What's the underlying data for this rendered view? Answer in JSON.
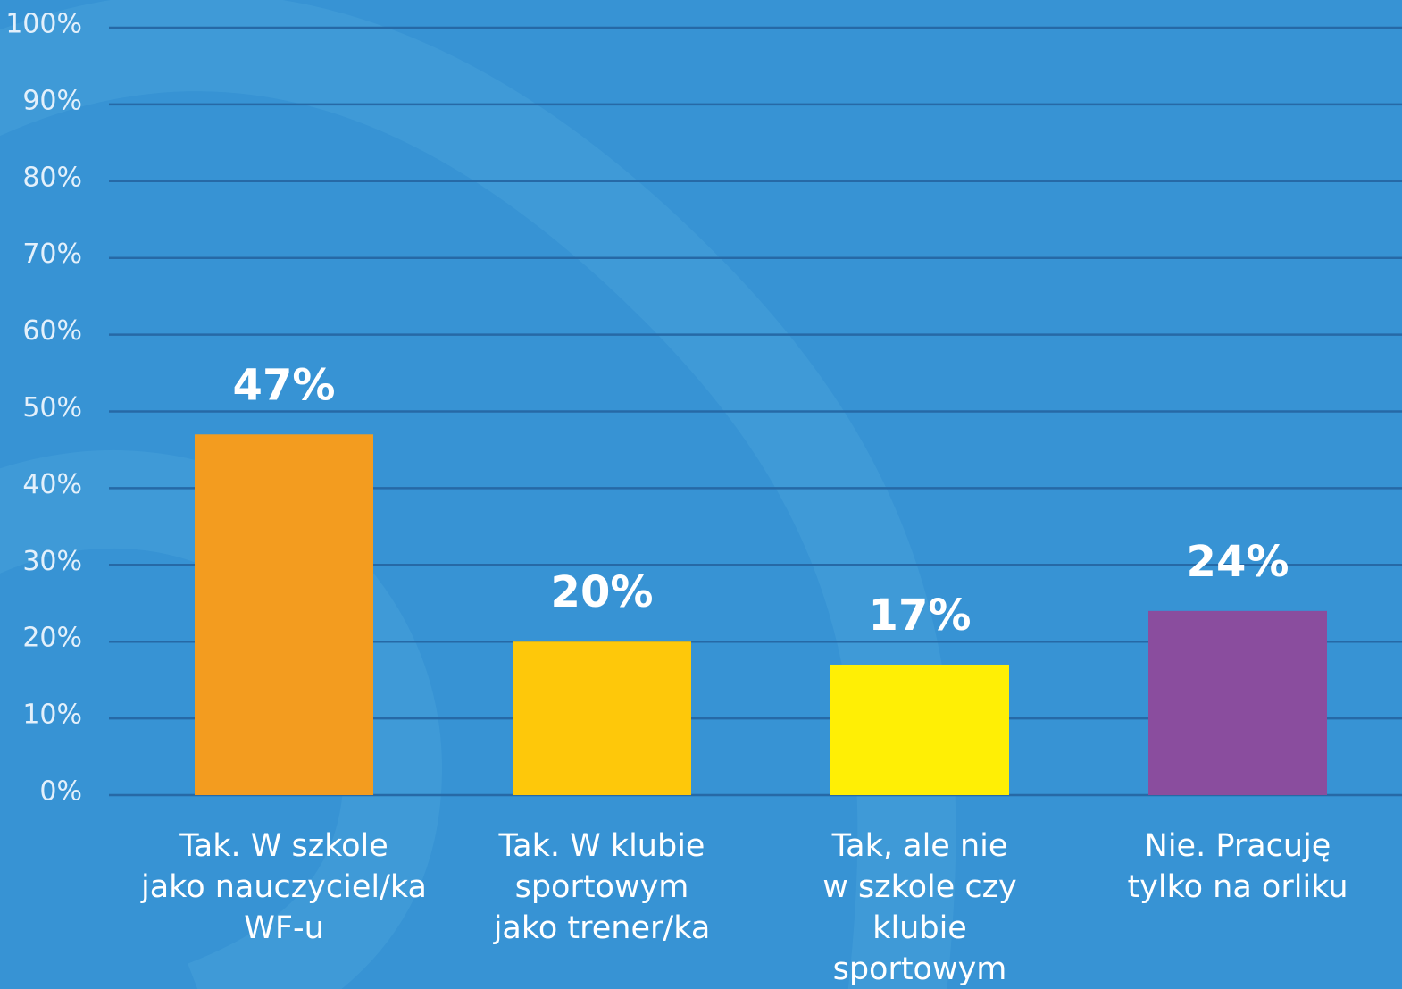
{
  "chart_data": {
    "type": "bar",
    "categories": [
      "Tak. W szkole\njako nauczyciel/ka\nWF-u",
      "Tak. W klubie\nsportowym\njako trener/ka",
      "Tak, ale nie\nw szkole czy\nklubie\nsportowym",
      "Nie. Pracuję\ntylko na orliku"
    ],
    "values": [
      47,
      20,
      17,
      24
    ],
    "value_labels": [
      "47%",
      "20%",
      "17%",
      "24%"
    ],
    "colors": [
      "#f39c1f",
      "#fec80a",
      "#ffef05",
      "#8a4d9e"
    ],
    "ylim": [
      0,
      100
    ],
    "yticks": [
      {
        "value": 0,
        "label": "0%"
      },
      {
        "value": 10,
        "label": "10%"
      },
      {
        "value": 20,
        "label": "20%"
      },
      {
        "value": 30,
        "label": "30%"
      },
      {
        "value": 40,
        "label": "40%"
      },
      {
        "value": 50,
        "label": "50%"
      },
      {
        "value": 60,
        "label": "60%"
      },
      {
        "value": 70,
        "label": "70%"
      },
      {
        "value": 80,
        "label": "80%"
      },
      {
        "value": 90,
        "label": "90%"
      },
      {
        "value": 100,
        "label": "100%"
      }
    ],
    "grid": true
  }
}
